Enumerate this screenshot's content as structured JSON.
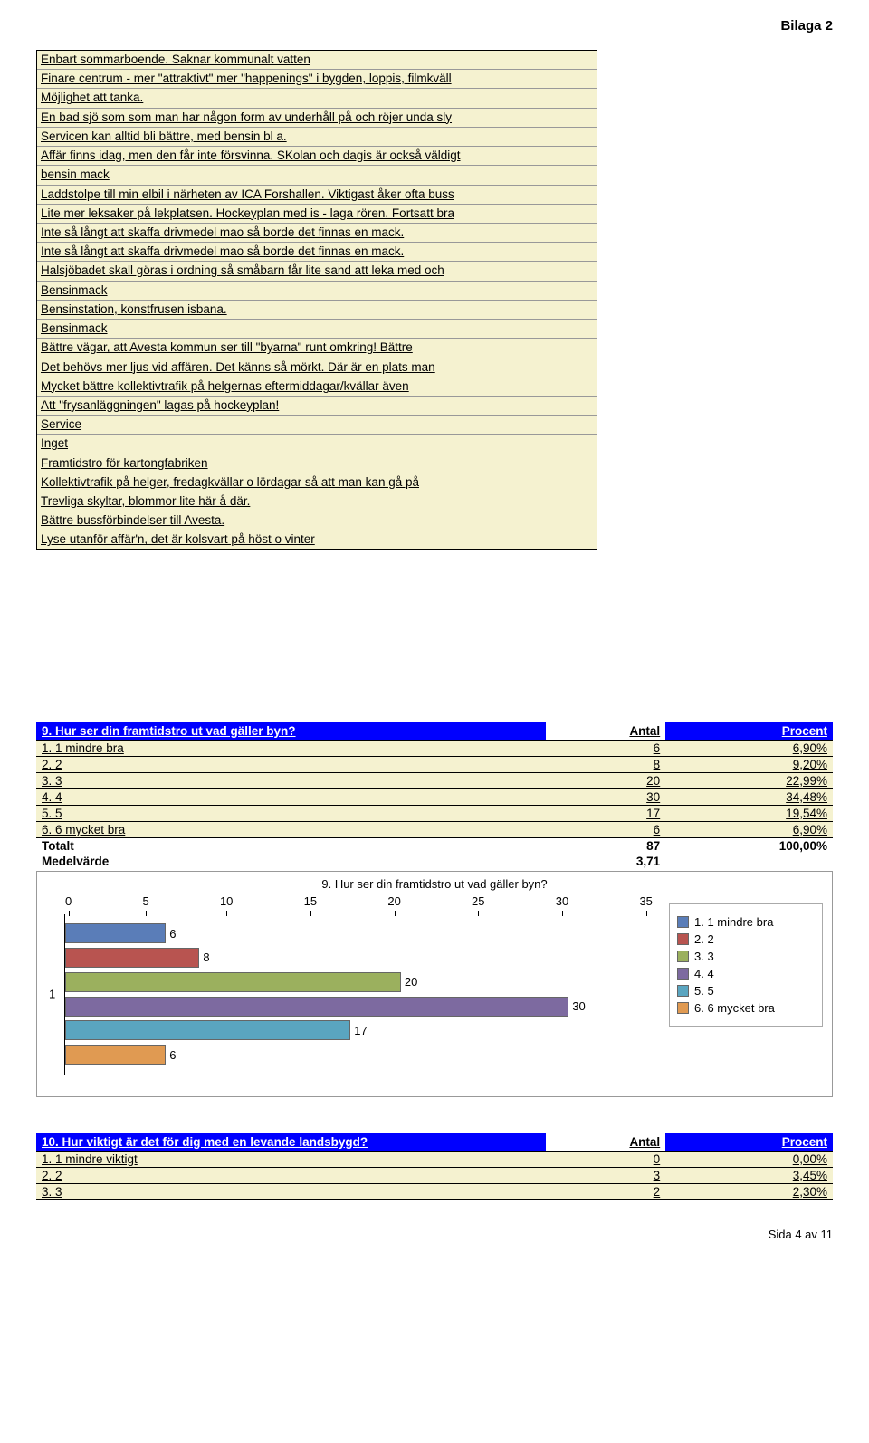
{
  "header": {
    "bilaga": "Bilaga 2"
  },
  "comments": [
    "Enbart sommarboende. Saknar kommunalt vatten",
    "Finare centrum - mer \"attraktivt\" mer \"happenings\" i bygden, loppis, filmkväll",
    "Möjlighet att tanka.",
    "En bad sjö som som man har någon form av underhåll på och röjer unda sly",
    "Servicen kan alltid bli bättre, med bensin bl a.",
    "Affär finns idag, men den får inte försvinna. SKolan och dagis är också väldigt",
    "bensin mack",
    "Laddstolpe till min elbil i närheten av ICA Forshallen. Viktigast åker ofta buss",
    "Lite mer leksaker på lekplatsen. Hockeyplan med is - laga rören. Fortsatt bra",
    "Inte så långt att skaffa drivmedel mao så borde det finnas en mack.",
    "Inte så långt att skaffa drivmedel mao så borde det finnas en mack.",
    "Halsjöbadet skall göras i ordning så småbarn får lite sand att leka med och",
    "Bensinmack",
    "Bensinstation, konstfrusen isbana.",
    "Bensinmack",
    "Bättre vägar, att Avesta kommun ser till \"byarna\" runt omkring! Bättre",
    "Det behövs mer ljus vid affären. Det känns så mörkt. Där är en plats man",
    "Mycket bättre kollektivtrafik på helgernas eftermiddagar/kvällar även",
    "Att \"frysanläggningen\" lagas på hockeyplan!",
    "Service",
    "Inget",
    "Framtidstro för kartongfabriken",
    "Kollektivtrafik på helger, fredagkvällar o lördagar så att man kan gå på",
    "Trevliga skyltar, blommor lite här å där.",
    "Bättre bussförbindelser till Avesta.",
    "Lyse utanför affär'n, det är kolsvart på höst o vinter"
  ],
  "table9": {
    "question": "9. Hur ser din framtidstro ut vad gäller byn?",
    "col_antal": "Antal",
    "col_procent": "Procent",
    "rows": [
      {
        "label": "1. 1 mindre bra",
        "antal": "6",
        "procent": "6,90%"
      },
      {
        "label": "2. 2",
        "antal": "8",
        "procent": "9,20%"
      },
      {
        "label": "3. 3",
        "antal": "20",
        "procent": "22,99%"
      },
      {
        "label": "4. 4",
        "antal": "30",
        "procent": "34,48%"
      },
      {
        "label": "5. 5",
        "antal": "17",
        "procent": "19,54%"
      },
      {
        "label": "6. 6 mycket bra",
        "antal": "6",
        "procent": "6,90%"
      }
    ],
    "total_label": "Totalt",
    "total_antal": "87",
    "total_procent": "100,00%",
    "medel_label": "Medelvärde",
    "medel_val": "3,71"
  },
  "chart": {
    "title": "9. Hur ser din framtidstro ut vad gäller byn?",
    "x_ticks": [
      "0",
      "5",
      "10",
      "15",
      "20",
      "25",
      "30",
      "35"
    ],
    "x_max": 35,
    "y_label": "1",
    "bars": [
      {
        "label": "6",
        "value": 6,
        "color": "#5a7db8"
      },
      {
        "label": "8",
        "value": 8,
        "color": "#b85450"
      },
      {
        "label": "20",
        "value": 20,
        "color": "#9bb05e"
      },
      {
        "label": "30",
        "value": 30,
        "color": "#7d6aa0"
      },
      {
        "label": "17",
        "value": 17,
        "color": "#5aa5c0"
      },
      {
        "label": "6",
        "value": 6,
        "color": "#e09a52"
      }
    ],
    "legend": [
      {
        "label": "1. 1 mindre bra",
        "color": "#5a7db8"
      },
      {
        "label": "2. 2",
        "color": "#b85450"
      },
      {
        "label": "3. 3",
        "color": "#9bb05e"
      },
      {
        "label": "4. 4",
        "color": "#7d6aa0"
      },
      {
        "label": "5. 5",
        "color": "#5aa5c0"
      },
      {
        "label": "6. 6 mycket bra",
        "color": "#e09a52"
      }
    ]
  },
  "table10": {
    "question": "10. Hur viktigt är det för dig med en levande landsbygd?",
    "col_antal": "Antal",
    "col_procent": "Procent",
    "rows": [
      {
        "label": "1. 1 mindre viktigt",
        "antal": "0",
        "procent": "0,00%"
      },
      {
        "label": "2. 2",
        "antal": "3",
        "procent": "3,45%"
      },
      {
        "label": "3. 3",
        "antal": "2",
        "procent": "2,30%"
      }
    ]
  },
  "footer": {
    "page": "Sida 4 av 11"
  }
}
